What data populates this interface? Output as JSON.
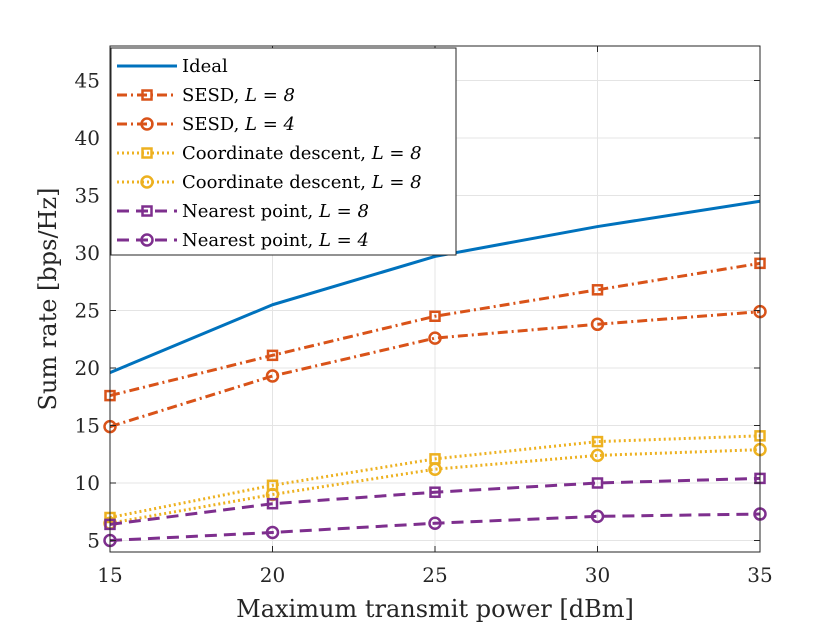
{
  "chart_data": {
    "type": "line",
    "xlabel": "Maximum transmit power [dBm]",
    "ylabel": "Sum rate [bps/Hz]",
    "xlim": [
      15,
      35
    ],
    "ylim": [
      4,
      48
    ],
    "xticks": [
      15,
      20,
      25,
      30,
      35
    ],
    "yticks": [
      5,
      10,
      15,
      20,
      25,
      30,
      35,
      40,
      45
    ],
    "grid": true,
    "legend_position": "top-left",
    "x": [
      15,
      20,
      25,
      30,
      35
    ],
    "series": [
      {
        "name": "Ideal",
        "name_prefix": "Ideal",
        "name_math": "",
        "color": "#0072BD",
        "dash": "solid",
        "marker": "none",
        "values": [
          19.6,
          25.5,
          29.7,
          32.3,
          34.5
        ]
      },
      {
        "name": "SESD, L = 8",
        "name_prefix": "SESD, ",
        "name_math": "L = 8",
        "color": "#D95319",
        "dash": "dashdot",
        "marker": "square",
        "values": [
          17.6,
          21.1,
          24.5,
          26.8,
          29.1
        ]
      },
      {
        "name": "SESD, L = 4",
        "name_prefix": "SESD, ",
        "name_math": "L = 4",
        "color": "#D95319",
        "dash": "dashdot",
        "marker": "circle",
        "values": [
          14.9,
          19.3,
          22.6,
          23.8,
          24.9
        ]
      },
      {
        "name": "Coordinate descent, L = 8",
        "name_prefix": "Coordinate descent, ",
        "name_math": "L = 8",
        "color": "#EDB120",
        "dash": "dotted",
        "marker": "square",
        "values": [
          7.0,
          9.8,
          12.1,
          13.6,
          14.1
        ]
      },
      {
        "name": "Coordinate descent, L = 8",
        "name_prefix": "Coordinate descent, ",
        "name_math": "L = 8",
        "color": "#EDB120",
        "dash": "dotted",
        "marker": "circle",
        "values": [
          6.5,
          9.0,
          11.2,
          12.4,
          12.9
        ]
      },
      {
        "name": "Nearest point, L = 8",
        "name_prefix": "Nearest point, ",
        "name_math": "L = 8",
        "color": "#7E2F8E",
        "dash": "dashed",
        "marker": "square",
        "values": [
          6.4,
          8.2,
          9.2,
          10.0,
          10.4
        ]
      },
      {
        "name": "Nearest point, L = 4",
        "name_prefix": "Nearest point, ",
        "name_math": "L = 4",
        "color": "#7E2F8E",
        "dash": "dashed",
        "marker": "circle",
        "values": [
          5.0,
          5.7,
          6.5,
          7.1,
          7.3
        ]
      }
    ]
  }
}
